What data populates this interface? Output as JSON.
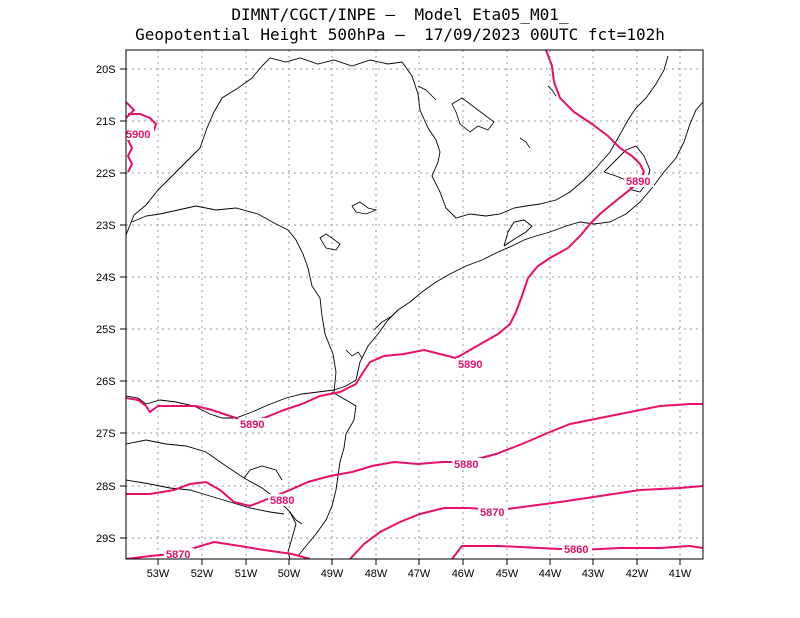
{
  "title_line1": "DIMNT/CGCT/INPE –  Model Eta05_M01_",
  "title_line2": "Geopotential Height 500hPa –  17/09/2023 00UTC fct=102h",
  "colors": {
    "contour": "#e8106a",
    "coast": "#000000",
    "grid": "#9a9a9a"
  },
  "axes": {
    "y_ticks": [
      "20S",
      "21S",
      "22S",
      "23S",
      "24S",
      "25S",
      "26S",
      "27S",
      "28S",
      "29S"
    ],
    "x_ticks": [
      "53W",
      "52W",
      "51W",
      "50W",
      "49W",
      "48W",
      "47W",
      "46W",
      "45W",
      "44W",
      "43W",
      "42W",
      "41W"
    ],
    "lat_range": [
      -29.4,
      -19.7
    ],
    "lon_range": [
      -53.65,
      -40.5
    ]
  },
  "contour_labels": [
    "5900",
    "5890",
    "5890",
    "5890",
    "5880",
    "5880",
    "5870",
    "5870",
    "5860"
  ]
}
